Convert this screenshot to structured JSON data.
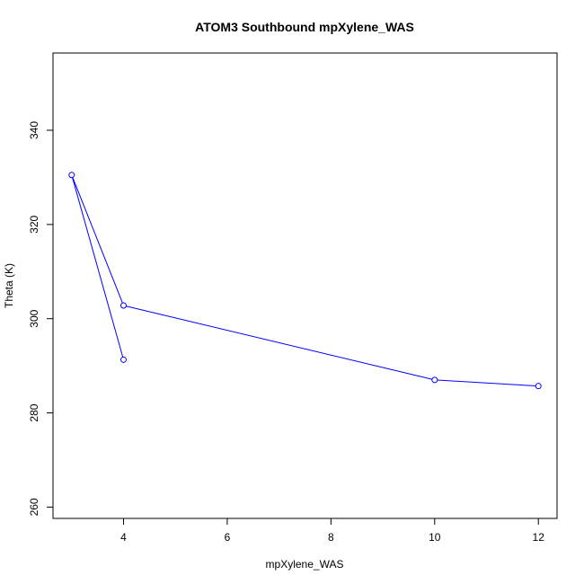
{
  "chart_data": {
    "type": "line",
    "title": "ATOM3 Southbound mpXylene_WAS",
    "xlabel": "mpXylene_WAS",
    "ylabel": "Theta (K)",
    "xlim": [
      2.64,
      12.36
    ],
    "ylim": [
      257.6,
      356.4
    ],
    "xticks": [
      4,
      6,
      8,
      10,
      12
    ],
    "yticks": [
      260,
      280,
      300,
      320,
      340
    ],
    "series": [
      {
        "color": "#0000ff",
        "marker": "open-circle",
        "points": [
          {
            "x": 4,
            "y": 291.3
          },
          {
            "x": 3,
            "y": 330.5
          },
          {
            "x": 4,
            "y": 302.8
          },
          {
            "x": 10,
            "y": 287.0
          },
          {
            "x": 12,
            "y": 285.7
          }
        ]
      }
    ],
    "grid": false,
    "legend": "none"
  }
}
